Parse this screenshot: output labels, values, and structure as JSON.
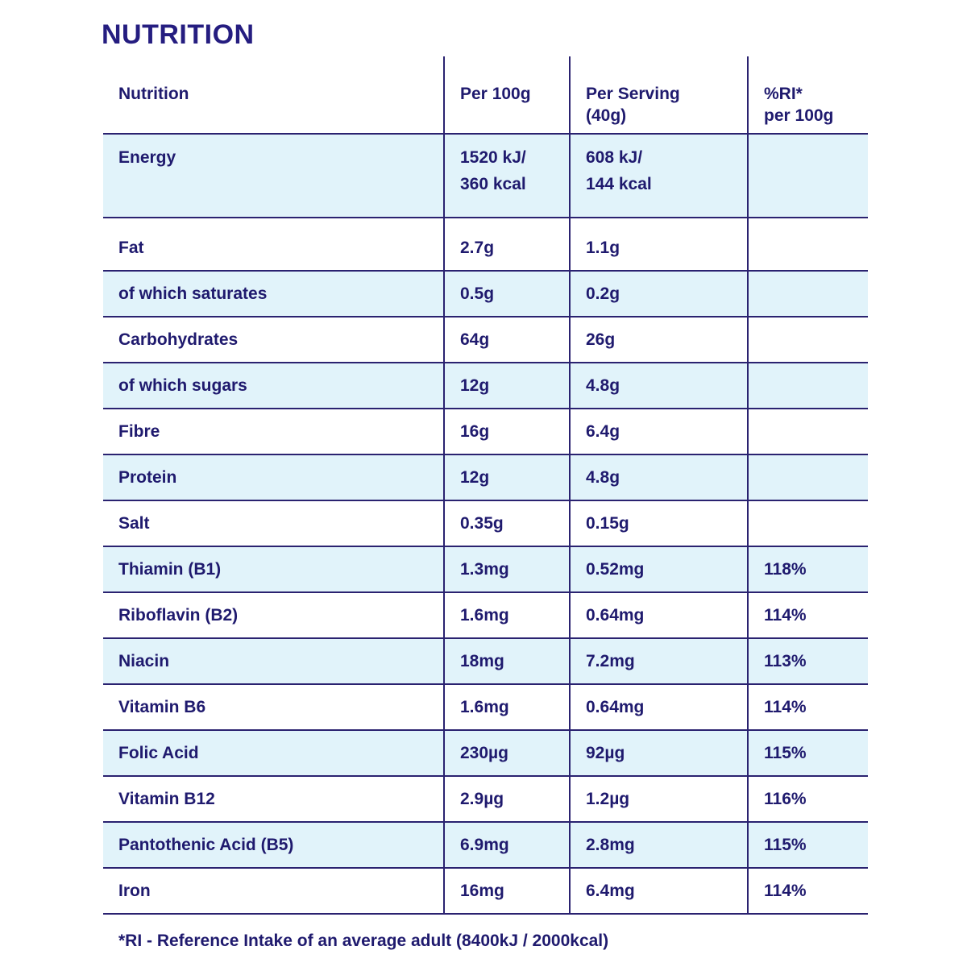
{
  "title": "NUTRITION",
  "headers": {
    "nutrition": "Nutrition",
    "per100": "Per 100g",
    "serving_line1": "Per Serving",
    "serving_line2": "(40g)",
    "ri_line1": "%RI*",
    "ri_line2": "per 100g"
  },
  "energy": {
    "label": "Energy",
    "per100_line1": "1520 kJ/",
    "per100_line2": "360 kcal",
    "serving_line1": "608 kJ/",
    "serving_line2": "144 kcal",
    "ri": ""
  },
  "rows": [
    {
      "label": "Fat",
      "per100": "2.7g",
      "serving": "1.1g",
      "ri": ""
    },
    {
      "label": "of which saturates",
      "per100": "0.5g",
      "serving": "0.2g",
      "ri": ""
    },
    {
      "label": "Carbohydrates",
      "per100": "64g",
      "serving": "26g",
      "ri": ""
    },
    {
      "label": "of which sugars",
      "per100": "12g",
      "serving": "4.8g",
      "ri": ""
    },
    {
      "label": "Fibre",
      "per100": "16g",
      "serving": "6.4g",
      "ri": ""
    },
    {
      "label": "Protein",
      "per100": "12g",
      "serving": "4.8g",
      "ri": ""
    },
    {
      "label": "Salt",
      "per100": "0.35g",
      "serving": "0.15g",
      "ri": ""
    },
    {
      "label": "Thiamin (B1)",
      "per100": "1.3mg",
      "serving": "0.52mg",
      "ri": "118%"
    },
    {
      "label": "Riboflavin (B2)",
      "per100": "1.6mg",
      "serving": "0.64mg",
      "ri": "114%"
    },
    {
      "label": "Niacin",
      "per100": "18mg",
      "serving": "7.2mg",
      "ri": "113%"
    },
    {
      "label": "Vitamin B6",
      "per100": "1.6mg",
      "serving": "0.64mg",
      "ri": "114%"
    },
    {
      "label": "Folic Acid",
      "per100": "230µg",
      "serving": "92µg",
      "ri": "115%"
    },
    {
      "label": "Vitamin B12",
      "per100": "2.9µg",
      "serving": "1.2µg",
      "ri": "116%"
    },
    {
      "label": "Pantothenic Acid (B5)",
      "per100": "6.9mg",
      "serving": "2.8mg",
      "ri": "115%"
    },
    {
      "label": "Iron",
      "per100": "16mg",
      "serving": "6.4mg",
      "ri": "114%"
    }
  ],
  "footnote": "*RI - Reference Intake of an average adult (8400kJ / 2000kcal)",
  "colors": {
    "text": "#1f1a6e",
    "shade": "#e1f3fa",
    "rule": "#2a2270"
  }
}
